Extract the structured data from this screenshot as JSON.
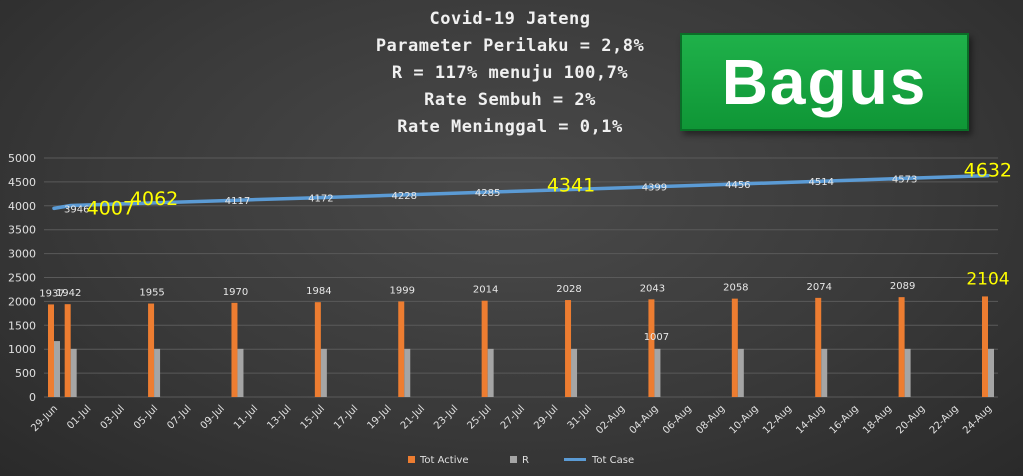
{
  "title_lines": [
    "Covid-19 Jateng",
    "Parameter Perilaku = 2,8%",
    "R = 117% menuju 100,7%",
    "Rate Sembuh = 2%",
    "Rate Meninggal = 0,1%"
  ],
  "badge": "Bagus",
  "colors": {
    "tot_active": "#ed7d31",
    "r": "#a5a5a5",
    "tot_case": "#5b9bd5",
    "highlight_label": "#ffff00"
  },
  "chart_data": {
    "type": "bar",
    "ylim": [
      0,
      5000
    ],
    "yticks": [
      0,
      500,
      1000,
      1500,
      2000,
      2500,
      3000,
      3500,
      4000,
      4500,
      5000
    ],
    "x_start": "2020-06-29",
    "x_end": "2020-08-24",
    "xtick_labels": [
      "29-Jun",
      "01-Jul",
      "03-Jul",
      "05-Jul",
      "07-Jul",
      "09-Jul",
      "11-Jul",
      "13-Jul",
      "15-Jul",
      "17-Jul",
      "19-Jul",
      "21-Jul",
      "23-Jul",
      "25-Jul",
      "27-Jul",
      "29-Jul",
      "31-Jul",
      "02-Aug",
      "04-Aug",
      "06-Aug",
      "08-Aug",
      "10-Aug",
      "12-Aug",
      "14-Aug",
      "16-Aug",
      "18-Aug",
      "20-Aug",
      "22-Aug",
      "24-Aug"
    ],
    "legend": [
      "Tot Active",
      "R",
      "Tot Case"
    ],
    "legend_position": "bottom",
    "series": [
      {
        "name": "Tot Active",
        "kind": "bar",
        "x": [
          "2020-06-29",
          "2020-06-30",
          "2020-07-05",
          "2020-07-10",
          "2020-07-15",
          "2020-07-20",
          "2020-07-25",
          "2020-07-30",
          "2020-08-04",
          "2020-08-09",
          "2020-08-14",
          "2020-08-19",
          "2020-08-24"
        ],
        "values": [
          1937,
          1942,
          1955,
          1970,
          1984,
          1999,
          2014,
          2028,
          2043,
          2058,
          2074,
          2089,
          2104
        ],
        "labels": [
          "1937",
          "1942",
          "1955",
          "1970",
          "1984",
          "1999",
          "2014",
          "2028",
          "2043",
          "2058",
          "2074",
          "2089",
          "2104"
        ],
        "highlight": [
          false,
          false,
          false,
          false,
          false,
          false,
          false,
          false,
          false,
          false,
          false,
          false,
          true
        ]
      },
      {
        "name": "R",
        "kind": "bar",
        "x": [
          "2020-06-29",
          "2020-06-30",
          "2020-07-05",
          "2020-07-10",
          "2020-07-15",
          "2020-07-20",
          "2020-07-25",
          "2020-07-30",
          "2020-08-04",
          "2020-08-09",
          "2020-08-14",
          "2020-08-19",
          "2020-08-24"
        ],
        "values": [
          1170,
          1007,
          1007,
          1007,
          1007,
          1007,
          1007,
          1007,
          1007,
          1007,
          1007,
          1007,
          1007
        ],
        "labels": [
          "",
          "",
          "",
          "",
          "",
          "",
          "",
          "",
          "1007",
          "",
          "",
          "",
          ""
        ]
      },
      {
        "name": "Tot Case",
        "kind": "line",
        "x": [
          "2020-06-29",
          "2020-06-30",
          "2020-07-05",
          "2020-07-10",
          "2020-07-15",
          "2020-07-20",
          "2020-07-25",
          "2020-07-30",
          "2020-08-04",
          "2020-08-09",
          "2020-08-14",
          "2020-08-19",
          "2020-08-24"
        ],
        "values": [
          3946,
          4007,
          4062,
          4117,
          4172,
          4228,
          4285,
          4341,
          4399,
          4456,
          4514,
          4573,
          4632
        ],
        "labels": [
          "3946",
          "4007",
          "4062",
          "4117",
          "4172",
          "4228",
          "4285",
          "4341",
          "4399",
          "4456",
          "4514",
          "4573",
          "4632"
        ],
        "highlight": [
          false,
          true,
          true,
          false,
          false,
          false,
          false,
          true,
          false,
          false,
          false,
          false,
          true
        ]
      }
    ]
  }
}
